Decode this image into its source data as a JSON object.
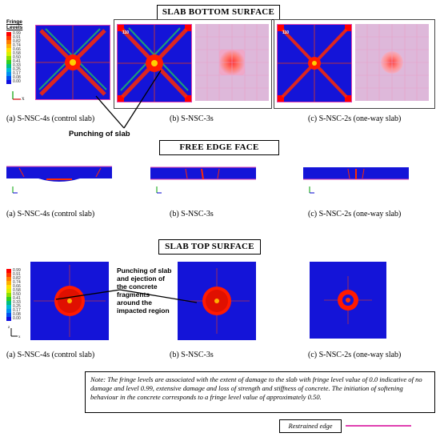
{
  "sections": {
    "bottom_title": "SLAB BOTTOM SURFACE",
    "edge_title": "FREE EDGE FACE",
    "top_title": "SLAB TOP SURFACE"
  },
  "fringe": {
    "title_line1": "Fringe",
    "title_line2": "Levels",
    "levels": [
      "0.99",
      "0.91",
      "0.82",
      "0.74",
      "0.66",
      "0.58",
      "0.50",
      "0.41",
      "0.33",
      "0.25",
      "0.17",
      "0.08",
      "0.00"
    ],
    "colors": [
      "#ff0000",
      "#ff3a00",
      "#ff7a00",
      "#ffb000",
      "#ffe000",
      "#d8f000",
      "#8ce000",
      "#30d020",
      "#00c080",
      "#00b8d8",
      "#0090f0",
      "#0050f0",
      "#1010e0"
    ]
  },
  "captions": {
    "bottom": [
      "(a) S-NSC-4s (control slab)",
      "(b) S-NSC-3s",
      "(c) S-NSC-2s (one-way slab)"
    ],
    "edge": [
      "(a) S-NSC-4s (control slab)",
      "(b) S-NSC-3s",
      "(c) S-NSC-2s (one-way slab)"
    ],
    "top": [
      "(a) S-NSC-4s (control slab)",
      "(b) S-NSC-3s",
      "(c) S-NSC-2s (one-way slab)"
    ]
  },
  "callouts": {
    "punching": "Punching of slab",
    "ejection": [
      "Punching of slab",
      "and ejection of",
      "the concrete",
      "fragments",
      "around the",
      "impacted region"
    ]
  },
  "panel_tags": [
    "110",
    "115",
    "110",
    "115"
  ],
  "axes": {
    "x": "x",
    "z": "z"
  },
  "note": "Note: The fringe levels are associated with the extent of damage to the slab with fringe level value of 0.0 indicative of no damage and level 0.99, extensive damage and loss of strength and stiffness of concrete. The initiation of softening behaviour in the concrete corresponds to a fringe level value of approximately 0.50.",
  "legend_line": {
    "label": "Restrained edge",
    "color": "#e040b0"
  }
}
